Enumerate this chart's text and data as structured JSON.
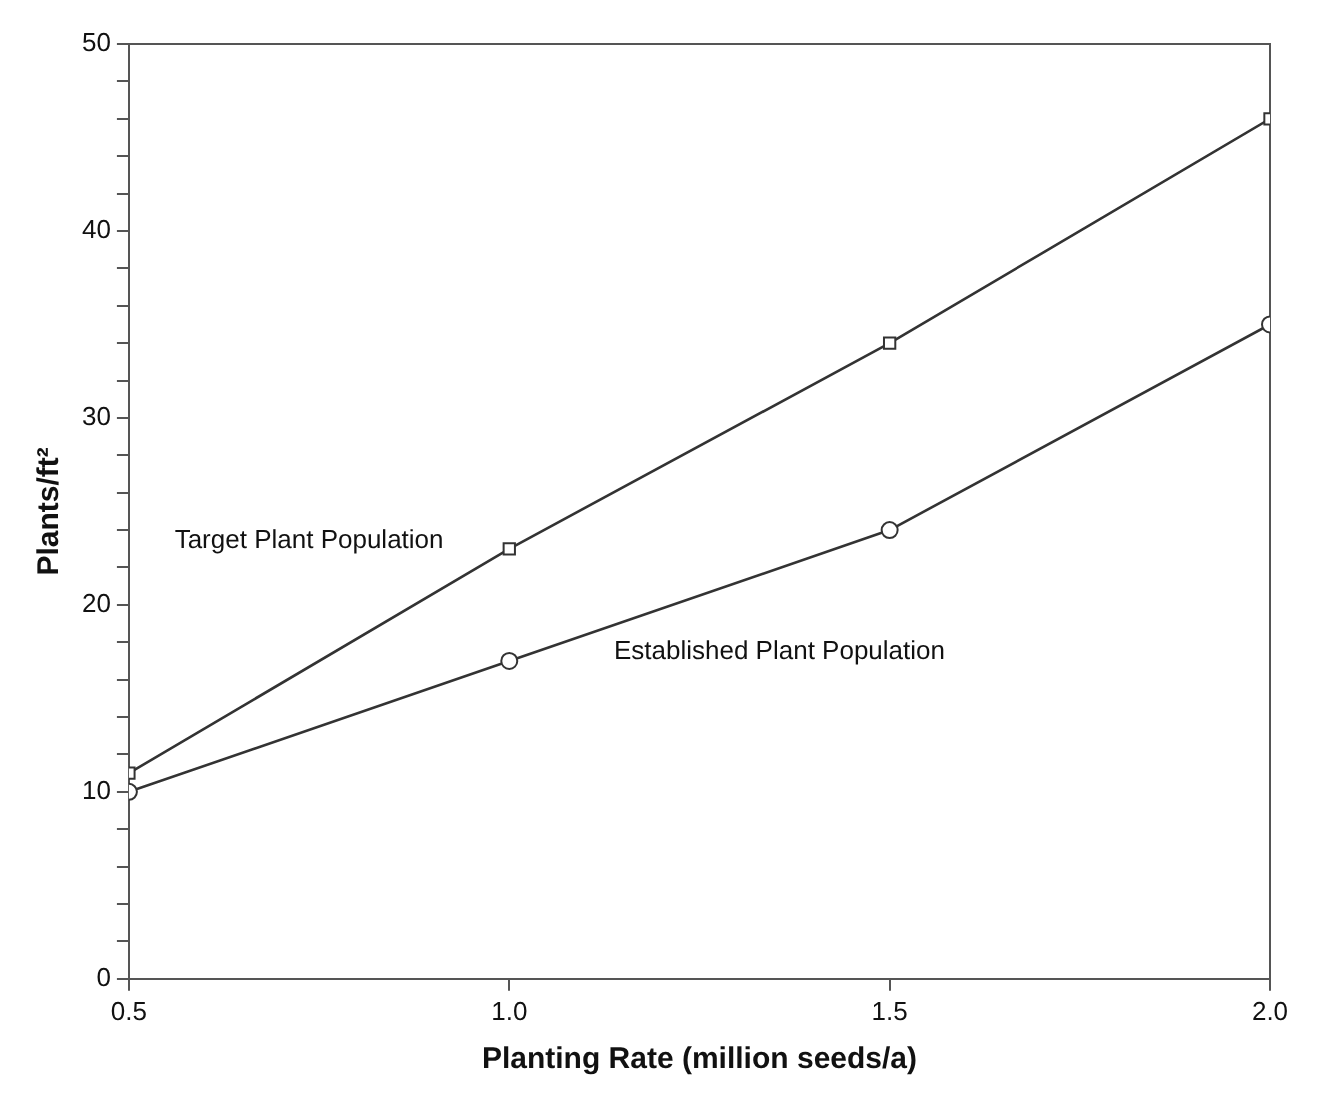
{
  "chart_data": {
    "type": "line",
    "xlabel": "Planting Rate (million seeds/a)",
    "ylabel": "Plants/ft²",
    "x": [
      0.5,
      1.0,
      1.5,
      2.0
    ],
    "series": [
      {
        "name": "Target Plant Population",
        "color": "#333333",
        "values": [
          11,
          23,
          34,
          46
        ],
        "marker": "square"
      },
      {
        "name": "Established Plant Population",
        "color": "#333333",
        "values": [
          10,
          17,
          24,
          35
        ],
        "marker": "circle"
      }
    ],
    "xlim": [
      0.5,
      2.0
    ],
    "xticks": [
      {
        "value": 0.5,
        "label": "0.5"
      },
      {
        "value": 1,
        "label": "1.0"
      },
      {
        "value": 1.5,
        "label": "1.5"
      },
      {
        "value": 2,
        "label": "2.0"
      }
    ],
    "ylim": [
      0,
      50
    ],
    "yticks": [
      0,
      {
        "value": 2,
        "label": null
      },
      {
        "value": 4,
        "label": null
      },
      {
        "value": 6,
        "label": null
      },
      {
        "value": 8,
        "label": null
      },
      10,
      {
        "value": 12,
        "label": null
      },
      {
        "value": 14,
        "label": null
      },
      {
        "value": 16,
        "label": null
      },
      {
        "value": 18,
        "label": null
      },
      20,
      {
        "value": 22,
        "label": null
      },
      {
        "value": 24,
        "label": null
      },
      {
        "value": 26,
        "label": null
      },
      {
        "value": 28,
        "label": null
      },
      30,
      {
        "value": 32,
        "label": null
      },
      {
        "value": 34,
        "label": null
      },
      {
        "value": 36,
        "label": null
      },
      {
        "value": 38,
        "label": null
      },
      40,
      {
        "value": 42,
        "label": null
      },
      {
        "value": 44,
        "label": null
      },
      {
        "value": 46,
        "label": null
      },
      {
        "value": 48,
        "label": null
      },
      50
    ],
    "grid": false,
    "legend": false,
    "line_style": "solid"
  }
}
